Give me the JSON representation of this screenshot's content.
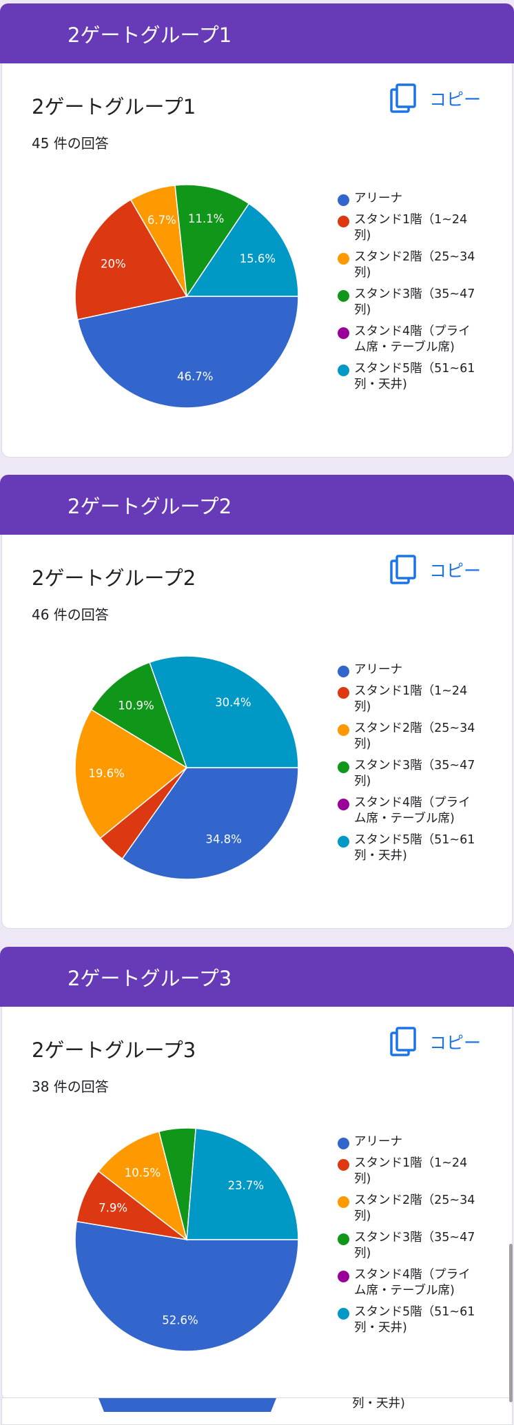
{
  "legend_labels": [
    "アリーナ",
    "スタンド1階（1~24\n列)",
    "スタンド2階（25~34\n列)",
    "スタンド3階（35~47\n列)",
    "スタンド4階（プライ\nム席・テーブル席)",
    "スタンド5階（51~61\n列・天井)"
  ],
  "colors": [
    "#3366cc",
    "#dc3912",
    "#ff9900",
    "#109618",
    "#990099",
    "#0099c6"
  ],
  "copy_label": "コピー",
  "copy_icon": "copy-icon",
  "bottom_partial_text": "列・天井)",
  "sections": [
    {
      "banner_title": "2ゲートグループ1",
      "question_title": "2ゲートグループ1",
      "response_count": "45 件の回答",
      "percent_labels": [
        "46.7%",
        "20%",
        "6.7%",
        "11.1%",
        "",
        "15.6%"
      ]
    },
    {
      "banner_title": "2ゲートグループ2",
      "question_title": "2ゲートグループ2",
      "response_count": "46 件の回答",
      "percent_labels": [
        "34.8%",
        "",
        "19.6%",
        "10.9%",
        "",
        "30.4%"
      ]
    },
    {
      "banner_title": "2ゲートグループ3",
      "question_title": "2ゲートグループ3",
      "response_count": "38 件の回答",
      "percent_labels": [
        "52.6%",
        "7.9%",
        "10.5%",
        "",
        "",
        "23.7%"
      ]
    }
  ],
  "chart_data": [
    {
      "type": "pie",
      "categories": [
        "アリーナ",
        "スタンド1階（1~24列)",
        "スタンド2階（25~34列)",
        "スタンド3階（35~47列)",
        "スタンド4階（プライム席・テーブル席)",
        "スタンド5階（51~61列・天井)"
      ],
      "values": [
        46.7,
        20.0,
        6.7,
        11.1,
        0.0,
        15.6
      ],
      "legend_position": "right"
    },
    {
      "type": "pie",
      "categories": [
        "アリーナ",
        "スタンド1階（1~24列)",
        "スタンド2階（25~34列)",
        "スタンド3階（35~47列)",
        "スタンド4階（プライム席・テーブル席)",
        "スタンド5階（51~61列・天井)"
      ],
      "values": [
        34.8,
        4.3,
        19.6,
        10.9,
        0.0,
        30.4
      ],
      "legend_position": "right"
    },
    {
      "type": "pie",
      "categories": [
        "アリーナ",
        "スタンド1階（1~24列)",
        "スタンド2階（25~34列)",
        "スタンド3階（35~47列)",
        "スタンド4階（プライム席・テーブル席)",
        "スタンド5階（51~61列・天井)"
      ],
      "values": [
        52.6,
        7.9,
        10.5,
        5.3,
        0.0,
        23.7
      ],
      "legend_position": "right"
    }
  ]
}
